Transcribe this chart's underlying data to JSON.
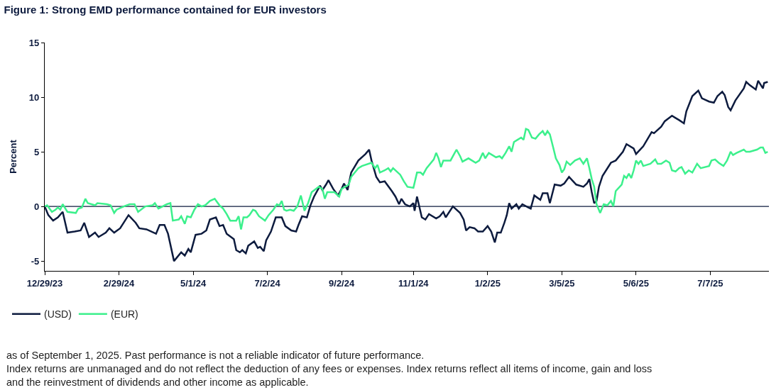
{
  "chart_data": {
    "type": "line",
    "title": "Figure 1: Strong EMD performance contained for EUR investors",
    "ylabel": "Percent",
    "xlim": [
      "2023-12-29",
      "2025-08-25"
    ],
    "xticks": [
      {
        "value": "2023-12-29",
        "label": "12/29/23"
      },
      {
        "value": "2024-02-29",
        "label": "2/29/24"
      },
      {
        "value": "2024-05-01",
        "label": "5/1/24"
      },
      {
        "value": "2024-07-02",
        "label": "7/2/24"
      },
      {
        "value": "2024-09-02",
        "label": "9/2/24"
      },
      {
        "value": "2024-11-01",
        "label": "11/1/24"
      },
      {
        "value": "2025-01-02",
        "label": "1/2/25"
      },
      {
        "value": "2025-03-05",
        "label": "3/5/25"
      },
      {
        "value": "2025-05-06",
        "label": "5/6/25"
      },
      {
        "value": "2025-07-07",
        "label": "7/7/25"
      }
    ],
    "ylim": [
      -5.9,
      15
    ],
    "yticks": [
      -5,
      0,
      5,
      10,
      15
    ],
    "grid": false,
    "legend": "bottom left",
    "marker": "none",
    "line_style": "solid",
    "ref_lines": [
      {
        "axis": "y",
        "value": 0,
        "color": "#0d1b3e"
      }
    ],
    "series": [
      {
        "name": "(USD)",
        "color": "#0d1b3e",
        "x": [
          "2023-12-29",
          "2024-01-01",
          "2024-01-05",
          "2024-01-09",
          "2024-01-13",
          "2024-01-17",
          "2024-01-23",
          "2024-01-28",
          "2024-01-31",
          "2024-02-04",
          "2024-02-09",
          "2024-02-12",
          "2024-02-18",
          "2024-02-21",
          "2024-02-25",
          "2024-03-01",
          "2024-03-08",
          "2024-03-14",
          "2024-03-17",
          "2024-03-23",
          "2024-03-31",
          "2024-04-03",
          "2024-04-07",
          "2024-04-10",
          "2024-04-15",
          "2024-04-21",
          "2024-04-24",
          "2024-04-27",
          "2024-04-29",
          "2024-05-03",
          "2024-05-08",
          "2024-05-12",
          "2024-05-15",
          "2024-05-20",
          "2024-05-23",
          "2024-05-26",
          "2024-05-29",
          "2024-06-04",
          "2024-06-06",
          "2024-06-09",
          "2024-06-11",
          "2024-06-14",
          "2024-06-16",
          "2024-06-21",
          "2024-06-24",
          "2024-06-26",
          "2024-06-29",
          "2024-07-01",
          "2024-07-05",
          "2024-07-09",
          "2024-07-14",
          "2024-07-17",
          "2024-07-22",
          "2024-07-26",
          "2024-07-28",
          "2024-07-31",
          "2024-08-04",
          "2024-08-07",
          "2024-08-10",
          "2024-08-15",
          "2024-08-17",
          "2024-08-20",
          "2024-08-22",
          "2024-08-26",
          "2024-08-30",
          "2024-09-02",
          "2024-09-04",
          "2024-09-07",
          "2024-09-10",
          "2024-09-16",
          "2024-09-22",
          "2024-09-25",
          "2024-09-27",
          "2024-10-01",
          "2024-10-04",
          "2024-10-08",
          "2024-10-14",
          "2024-10-17",
          "2024-10-20",
          "2024-10-22",
          "2024-10-25",
          "2024-10-29",
          "2024-11-01",
          "2024-11-02",
          "2024-11-04",
          "2024-11-08",
          "2024-11-11",
          "2024-11-14",
          "2024-11-20",
          "2024-11-23",
          "2024-11-26",
          "2024-11-28",
          "2024-12-04",
          "2024-12-10",
          "2024-12-13",
          "2024-12-15",
          "2024-12-18",
          "2024-12-22",
          "2024-12-25",
          "2024-12-29",
          "2025-01-02",
          "2025-01-05",
          "2025-01-08",
          "2025-01-10",
          "2025-01-13",
          "2025-01-16",
          "2025-01-18",
          "2025-01-20",
          "2025-01-22",
          "2025-01-26",
          "2025-01-28",
          "2025-01-31",
          "2025-02-05",
          "2025-02-07",
          "2025-02-10",
          "2025-02-15",
          "2025-02-17",
          "2025-02-21",
          "2025-02-23",
          "2025-02-27",
          "2025-03-04",
          "2025-03-07",
          "2025-03-11",
          "2025-03-17",
          "2025-03-23",
          "2025-03-26",
          "2025-03-28",
          "2025-03-30",
          "2025-04-01",
          "2025-04-03",
          "2025-04-05",
          "2025-04-08",
          "2025-04-15",
          "2025-04-19",
          "2025-04-25",
          "2025-04-28",
          "2025-05-04",
          "2025-05-06",
          "2025-05-12",
          "2025-05-19",
          "2025-05-21",
          "2025-05-27",
          "2025-05-30",
          "2025-06-05",
          "2025-06-08",
          "2025-06-11",
          "2025-06-15",
          "2025-06-17",
          "2025-06-22",
          "2025-06-27",
          "2025-06-30",
          "2025-07-06",
          "2025-07-10",
          "2025-07-13",
          "2025-07-17",
          "2025-07-19",
          "2025-07-22",
          "2025-07-24",
          "2025-07-28",
          "2025-08-04",
          "2025-08-06",
          "2025-08-09",
          "2025-08-14",
          "2025-08-16",
          "2025-08-20",
          "2025-08-21",
          "2025-08-24"
        ],
        "values": [
          0,
          -0.8,
          -1.3,
          -1.0,
          -0.5,
          -2.4,
          -2.3,
          -2.2,
          -1.5,
          -2.8,
          -2.4,
          -2.8,
          -2.4,
          -2.0,
          -2.4,
          -2.0,
          -0.8,
          -1.5,
          -2.0,
          -2.1,
          -2.5,
          -1.7,
          -1.7,
          -2.5,
          -5.0,
          -4.2,
          -4.5,
          -3.9,
          -4.2,
          -2.6,
          -2.5,
          -2.2,
          -1.2,
          -1.0,
          -1.8,
          -1.7,
          -2.5,
          -3.0,
          -4.0,
          -4.2,
          -4.0,
          -4.3,
          -3.6,
          -3.2,
          -3.8,
          -3.7,
          -4.1,
          -3.1,
          -2.3,
          -1.0,
          -1.0,
          -1.8,
          -2.2,
          -2.3,
          -1.7,
          -0.9,
          -1.0,
          0.1,
          0.9,
          1.9,
          1.5,
          2.0,
          2.4,
          1.6,
          1.0,
          1.6,
          2.1,
          1.5,
          3.1,
          4.2,
          4.8,
          5.2,
          4.2,
          2.7,
          2.2,
          2.3,
          1.4,
          0.9,
          0.2,
          0.7,
          0.2,
          0.0,
          0.3,
          -0.4,
          0.9,
          -1.0,
          -1.2,
          -0.7,
          -1.1,
          -0.9,
          -0.5,
          -1.0,
          0.0,
          -0.6,
          -1.2,
          -2.2,
          -1.9,
          -2.0,
          -2.3,
          -2.3,
          -1.8,
          -2.3,
          -3.3,
          -2.4,
          -2.4,
          -1.5,
          -0.8,
          0.3,
          -0.2,
          0.2,
          -0.2,
          0.2,
          -0.1,
          -0.2,
          1.0,
          0.6,
          1.2,
          1.2,
          0.3,
          2.0,
          1.9,
          2.1,
          2.7,
          2.0,
          1.8,
          2.1,
          2.5,
          1.3,
          0.3,
          0.5,
          1.8,
          2.8,
          4.0,
          4.2,
          5.0,
          5.7,
          5.3,
          4.8,
          5.5,
          6.8,
          6.7,
          7.3,
          7.8,
          8.3,
          8.1,
          7.9,
          7.6,
          8.7,
          10.1,
          10.6,
          9.9,
          9.6,
          9.5,
          10.1,
          10.5,
          10.2,
          9.1,
          8.8,
          9.7,
          10.8,
          11.4,
          11.1,
          10.7,
          11.5,
          10.8,
          11.3,
          11.4
        ]
      },
      {
        "name": "(EUR)",
        "color": "#3cf08c",
        "x": [
          "2023-12-29",
          "2023-12-31",
          "2024-01-04",
          "2024-01-07",
          "2024-01-09",
          "2024-01-11",
          "2024-01-13",
          "2024-01-17",
          "2024-01-24",
          "2024-01-26",
          "2024-01-29",
          "2024-02-01",
          "2024-02-03",
          "2024-02-09",
          "2024-02-11",
          "2024-02-19",
          "2024-02-22",
          "2024-02-25",
          "2024-02-27",
          "2024-03-04",
          "2024-03-09",
          "2024-03-13",
          "2024-03-16",
          "2024-03-22",
          "2024-03-28",
          "2024-03-30",
          "2024-04-02",
          "2024-04-09",
          "2024-04-12",
          "2024-04-14",
          "2024-04-19",
          "2024-04-21",
          "2024-04-24",
          "2024-04-26",
          "2024-04-29",
          "2024-05-02",
          "2024-05-05",
          "2024-05-08",
          "2024-05-11",
          "2024-05-15",
          "2024-05-19",
          "2024-05-23",
          "2024-05-26",
          "2024-05-29",
          "2024-06-01",
          "2024-06-06",
          "2024-06-08",
          "2024-06-10",
          "2024-06-12",
          "2024-06-15",
          "2024-06-17",
          "2024-06-20",
          "2024-06-22",
          "2024-06-25",
          "2024-06-30",
          "2024-07-03",
          "2024-07-07",
          "2024-07-10",
          "2024-07-12",
          "2024-07-14",
          "2024-07-16",
          "2024-07-18",
          "2024-07-21",
          "2024-07-24",
          "2024-07-27",
          "2024-07-30",
          "2024-08-02",
          "2024-08-05",
          "2024-08-08",
          "2024-08-14",
          "2024-08-17",
          "2024-08-19",
          "2024-08-21",
          "2024-08-27",
          "2024-08-31",
          "2024-09-02",
          "2024-09-08",
          "2024-09-10",
          "2024-09-16",
          "2024-09-19",
          "2024-09-27",
          "2024-09-30",
          "2024-10-02",
          "2024-10-04",
          "2024-10-08",
          "2024-10-11",
          "2024-10-13",
          "2024-10-15",
          "2024-10-21",
          "2024-10-24",
          "2024-10-27",
          "2024-11-01",
          "2024-11-04",
          "2024-11-07",
          "2024-11-09",
          "2024-11-12",
          "2024-11-18",
          "2024-11-20",
          "2024-11-22",
          "2024-11-24",
          "2024-11-26",
          "2024-12-02",
          "2024-12-05",
          "2024-12-07",
          "2024-12-10",
          "2024-12-12",
          "2024-12-17",
          "2024-12-23",
          "2024-12-26",
          "2024-12-29",
          "2024-12-31",
          "2025-01-03",
          "2025-01-09",
          "2025-01-12",
          "2025-01-14",
          "2025-01-17",
          "2025-01-20",
          "2025-01-22",
          "2025-01-24",
          "2025-01-27",
          "2025-01-30",
          "2025-02-01",
          "2025-02-03",
          "2025-02-05",
          "2025-02-08",
          "2025-02-11",
          "2025-02-14",
          "2025-02-17",
          "2025-02-19",
          "2025-02-21",
          "2025-02-23",
          "2025-02-26",
          "2025-02-28",
          "2025-03-03",
          "2025-03-05",
          "2025-03-07",
          "2025-03-09",
          "2025-03-12",
          "2025-03-16",
          "2025-03-20",
          "2025-03-23",
          "2025-03-26",
          "2025-03-28",
          "2025-03-30",
          "2025-04-01",
          "2025-04-03",
          "2025-04-06",
          "2025-04-09",
          "2025-04-12",
          "2025-04-15",
          "2025-04-17",
          "2025-04-19",
          "2025-04-24",
          "2025-04-26",
          "2025-04-28",
          "2025-04-30",
          "2025-05-02",
          "2025-05-04",
          "2025-05-06",
          "2025-05-08",
          "2025-05-10",
          "2025-05-12",
          "2025-05-18",
          "2025-05-22",
          "2025-05-24",
          "2025-05-27",
          "2025-05-31",
          "2025-06-03",
          "2025-06-05",
          "2025-06-08",
          "2025-06-11",
          "2025-06-13",
          "2025-06-16",
          "2025-06-19",
          "2025-06-22",
          "2025-06-26",
          "2025-06-29",
          "2025-07-06",
          "2025-07-08",
          "2025-07-11",
          "2025-07-14",
          "2025-07-18",
          "2025-07-21",
          "2025-07-24",
          "2025-07-26",
          "2025-07-29",
          "2025-08-04",
          "2025-08-06",
          "2025-08-09",
          "2025-08-15",
          "2025-08-18",
          "2025-08-20",
          "2025-08-22",
          "2025-08-24"
        ],
        "values": [
          0,
          0.1,
          -0.5,
          -0.3,
          -0.1,
          -0.3,
          0.2,
          -0.5,
          -0.6,
          -0.2,
          -0.1,
          0.7,
          0.3,
          0.1,
          0.3,
          0.2,
          0.1,
          -0.6,
          -0.3,
          0.0,
          0.2,
          0.2,
          -0.5,
          0.0,
          0.1,
          0.3,
          -0.2,
          0.2,
          0.3,
          -1.3,
          -1.2,
          -0.9,
          -1.6,
          -0.9,
          -1.0,
          -0.3,
          0.2,
          0.0,
          0.1,
          0.5,
          0.7,
          0.1,
          -0.2,
          -0.7,
          -1.3,
          -1.3,
          -0.9,
          -2.1,
          -1.0,
          -1.0,
          -0.8,
          -0.3,
          -0.4,
          -0.9,
          -1.3,
          -0.8,
          -0.3,
          0.2,
          0.1,
          0.5,
          -0.3,
          -0.4,
          -0.3,
          -0.4,
          0.0,
          1.0,
          -0.4,
          0.3,
          1.3,
          1.8,
          1.6,
          0.7,
          1.3,
          1.3,
          0.9,
          1.6,
          2.0,
          2.7,
          3.5,
          3.7,
          4.0,
          3.5,
          3.8,
          3.1,
          3.3,
          3.5,
          3.2,
          3.5,
          2.9,
          2.3,
          1.8,
          1.7,
          3.1,
          3.1,
          2.9,
          3.5,
          4.3,
          4.9,
          4.4,
          3.6,
          4.2,
          4.2,
          4.8,
          5.2,
          4.6,
          4.1,
          4.4,
          4.0,
          4.2,
          4.9,
          4.4,
          4.9,
          4.5,
          4.6,
          4.4,
          4.9,
          5.5,
          5.0,
          5.9,
          6.1,
          6.3,
          6.1,
          7.1,
          7.0,
          6.3,
          6.2,
          6.6,
          6.9,
          6.5,
          6.9,
          6.6,
          5.3,
          4.4,
          3.8,
          3.1,
          3.4,
          4.1,
          3.8,
          4.2,
          4.4,
          3.9,
          4.4,
          3.5,
          2.5,
          1.8,
          0.2,
          -0.6,
          0.2,
          0.1,
          0.5,
          0.0,
          1.4,
          2.0,
          2.8,
          2.6,
          3.0,
          2.6,
          3.3,
          4.2,
          3.9,
          4.2,
          3.7,
          3.9,
          4.3,
          3.9,
          3.9,
          4.2,
          4.0,
          3.3,
          3.2,
          3.5,
          3.6,
          3.0,
          3.3,
          3.1,
          3.9,
          3.5,
          3.7,
          4.2,
          4.3,
          4.0,
          3.7,
          4.2,
          5.0,
          4.7,
          4.9,
          5.2,
          5.0,
          5.0,
          5.2,
          5.4,
          5.4,
          4.9,
          5.0
        ]
      }
    ],
    "annotations": [
      "as of September 1, 2025. Past performance is not a reliable indicator of future performance.\nIndex returns are unmanaged and do not reflect the deduction of any fees or expenses. Index returns reflect all items of income, gain and loss\nand the reinvestment of dividends and other income as applicable."
    ]
  }
}
